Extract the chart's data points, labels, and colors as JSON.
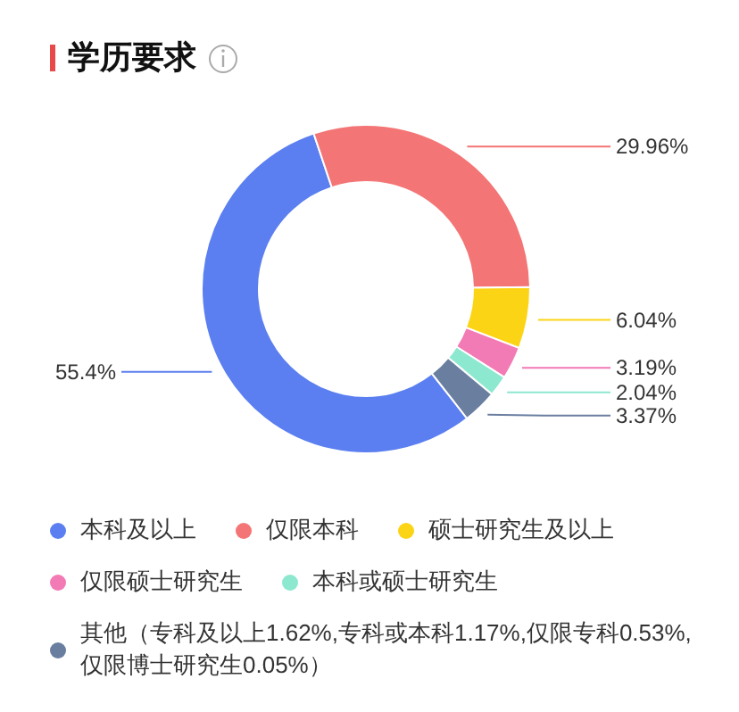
{
  "chart_data": {
    "type": "donut",
    "title": "学历要求",
    "categories": [
      "本科及以上",
      "仅限本科",
      "硕士研究生及以上",
      "仅限硕士研究生",
      "本科或硕士研究生",
      "其他（专科及以上1.62%,专科或本科1.17%,仅限专科0.53%,仅限博士研究生0.05%）"
    ],
    "values": [
      55.4,
      29.96,
      6.04,
      3.19,
      2.04,
      3.37
    ],
    "colors": [
      "#5b7ff0",
      "#f47575",
      "#fbd416",
      "#f27ab5",
      "#8de8d0",
      "#6a7ea0"
    ],
    "value_labels": [
      "55.4%",
      "29.96%",
      "6.04%",
      "3.19%",
      "2.04%",
      "3.37%"
    ],
    "legend": "bottom"
  }
}
